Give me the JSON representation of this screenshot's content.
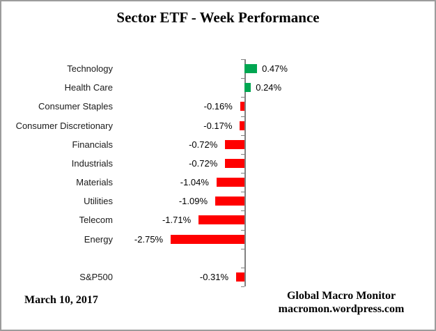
{
  "header": {
    "title": "Sector ETF - Week Performance"
  },
  "footer": {
    "date": "March 10, 2017",
    "brand_line1": "Global Macro Monitor",
    "brand_line2": "macromon.wordpress.com"
  },
  "chart_data": {
    "type": "bar",
    "orientation": "horizontal",
    "title": "Sector ETF - Week Performance",
    "categories": [
      "Technology",
      "Health Care",
      "Consumer Staples",
      "Consumer Discretionary",
      "Financials",
      "Industrials",
      "Materials",
      "Utilities",
      "Telecom",
      "Energy",
      "",
      "S&P500"
    ],
    "values": [
      0.47,
      0.24,
      -0.16,
      -0.17,
      -0.72,
      -0.72,
      -1.04,
      -1.09,
      -1.71,
      -2.75,
      null,
      -0.31
    ],
    "value_labels": [
      "0.47%",
      "0.24%",
      "-0.16%",
      "-0.17%",
      "-0.72%",
      "-0.72%",
      "-1.04%",
      "-1.09%",
      "-1.71%",
      "-2.75%",
      null,
      "-0.31%"
    ],
    "xlabel": "",
    "ylabel": "",
    "xlim": [
      -3,
      1
    ],
    "grid": false,
    "legend": false,
    "value_label_position": "outside-end",
    "colors": {
      "positive": "#00A651",
      "negative": "#FF0000",
      "axis": "#808080"
    }
  }
}
